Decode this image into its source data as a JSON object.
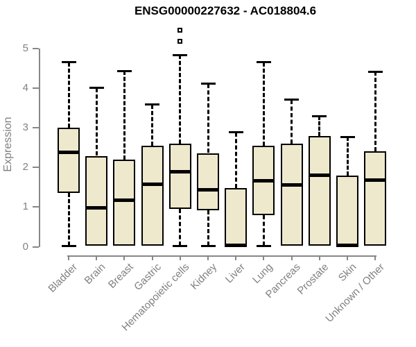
{
  "page_title": "ENSG00000227632 - AC018804.6",
  "chart_data": {
    "type": "boxplot",
    "title": "ENSG00000227632 - AC018804.6",
    "xlabel": "",
    "ylabel": "Expression",
    "ylim": [
      0,
      5.6
    ],
    "yticks": [
      0,
      1,
      2,
      3,
      4,
      5
    ],
    "grid": false,
    "legend": "none",
    "categories": [
      "Bladder",
      "Brain",
      "Breast",
      "Gastric",
      "Hematopoietic cells",
      "Kidney",
      "Liver",
      "Lung",
      "Pancreas",
      "Prostate",
      "Skin",
      "Unknown / Other"
    ],
    "boxes": [
      {
        "category": "Bladder",
        "whisker_low": 0.02,
        "q1": 1.36,
        "median": 2.38,
        "q3": 3.0,
        "whisker_high": 4.65,
        "outliers": []
      },
      {
        "category": "Brain",
        "whisker_low": 0.02,
        "q1": 0.02,
        "median": 0.98,
        "q3": 2.29,
        "whisker_high": 4.0,
        "outliers": []
      },
      {
        "category": "Breast",
        "whisker_low": 0.02,
        "q1": 0.02,
        "median": 1.17,
        "q3": 2.2,
        "whisker_high": 4.43,
        "outliers": []
      },
      {
        "category": "Gastric",
        "whisker_low": 0.02,
        "q1": 0.02,
        "median": 1.57,
        "q3": 2.55,
        "whisker_high": 3.58,
        "outliers": []
      },
      {
        "category": "Hematopoietic cells",
        "whisker_low": 0.02,
        "q1": 0.95,
        "median": 1.89,
        "q3": 2.6,
        "whisker_high": 4.83,
        "outliers": [
          5.17,
          5.46
        ]
      },
      {
        "category": "Kidney",
        "whisker_low": 0.02,
        "q1": 0.91,
        "median": 1.43,
        "q3": 2.36,
        "whisker_high": 4.1,
        "outliers": []
      },
      {
        "category": "Liver",
        "whisker_low": 0.0,
        "q1": 0.0,
        "median": 0.04,
        "q3": 1.47,
        "whisker_high": 2.88,
        "outliers": []
      },
      {
        "category": "Lung",
        "whisker_low": 0.02,
        "q1": 0.8,
        "median": 1.66,
        "q3": 2.54,
        "whisker_high": 4.65,
        "outliers": []
      },
      {
        "category": "Pancreas",
        "whisker_low": 0.02,
        "q1": 0.02,
        "median": 1.55,
        "q3": 2.6,
        "whisker_high": 3.7,
        "outliers": []
      },
      {
        "category": "Prostate",
        "whisker_low": 0.02,
        "q1": 0.02,
        "median": 1.8,
        "q3": 2.78,
        "whisker_high": 3.29,
        "outliers": []
      },
      {
        "category": "Skin",
        "whisker_low": 0.0,
        "q1": 0.0,
        "median": 0.04,
        "q3": 1.8,
        "whisker_high": 2.77,
        "outliers": []
      },
      {
        "category": "Unknown / Other",
        "whisker_low": 0.02,
        "q1": 0.02,
        "median": 1.67,
        "q3": 2.41,
        "whisker_high": 4.41,
        "outliers": []
      }
    ],
    "colors": {
      "box_fill": "#EEE8CD",
      "box_border": "#000000",
      "median": "#000000",
      "axis": "#878787",
      "tick_label": "#808080",
      "title": "#000000",
      "background": "#FFFFFF"
    }
  }
}
